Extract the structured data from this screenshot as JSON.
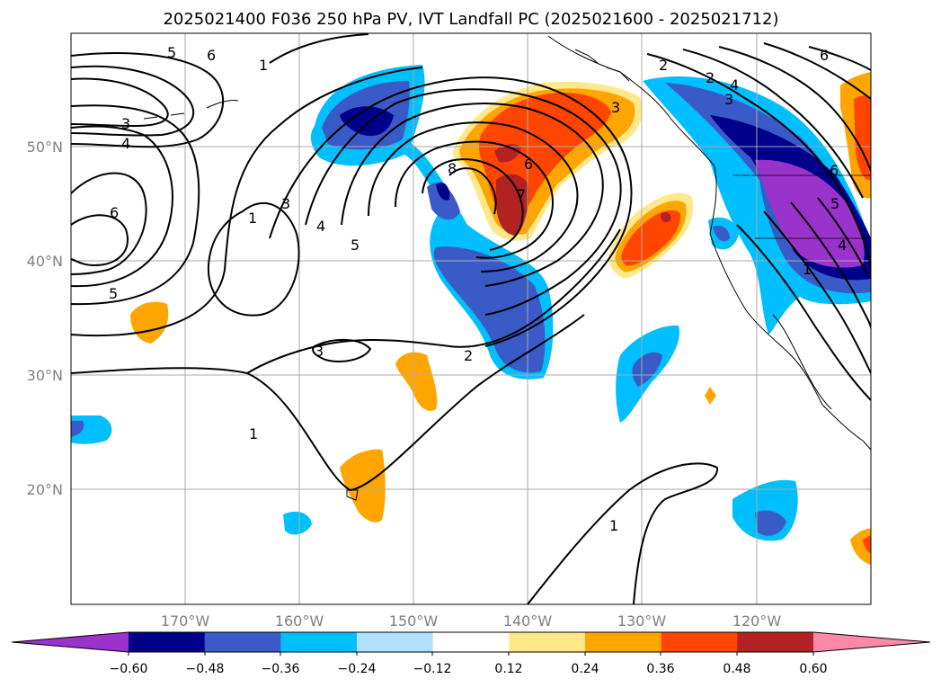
{
  "title": "2025021400 F036 250 hPa PV, IVT Landfall PC (2025021600 - 2025021712)",
  "map": {
    "projection": "PlateCarree",
    "lon_range": [
      -180,
      -110
    ],
    "lat_range": [
      10,
      60
    ],
    "grid": true,
    "lat_labels": [
      "50°N",
      "40°N",
      "30°N",
      "20°N"
    ],
    "lon_labels": [
      "170°W",
      "160°W",
      "150°W",
      "140°W",
      "130°W",
      "120°W"
    ]
  },
  "pv_contours": {
    "labels": [
      "5",
      "6",
      "1",
      "3",
      "4",
      "6",
      "5",
      "1",
      "3",
      "4",
      "5",
      "8",
      "7",
      "6",
      "2",
      "3",
      "2",
      "1",
      "1",
      "2",
      "4",
      "3",
      "6",
      "5",
      "4",
      "6",
      "3",
      "1"
    ]
  },
  "colorbar": {
    "tick_labels": [
      "−0.60",
      "−0.48",
      "−0.36",
      "−0.24",
      "−0.12",
      "0.12",
      "0.24",
      "0.36",
      "0.48",
      "0.60"
    ],
    "levels": [
      -0.6,
      -0.48,
      -0.36,
      -0.24,
      -0.12,
      0.12,
      0.24,
      0.36,
      0.48,
      0.6
    ],
    "colors": [
      "#9933cc",
      "#00008b",
      "#3a5bc7",
      "#00bfff",
      "#b0e2ff",
      "#ffffff",
      "#ffe88a",
      "#ffa500",
      "#ff4500",
      "#b22222",
      "#ff88aa"
    ],
    "extend": "both"
  }
}
